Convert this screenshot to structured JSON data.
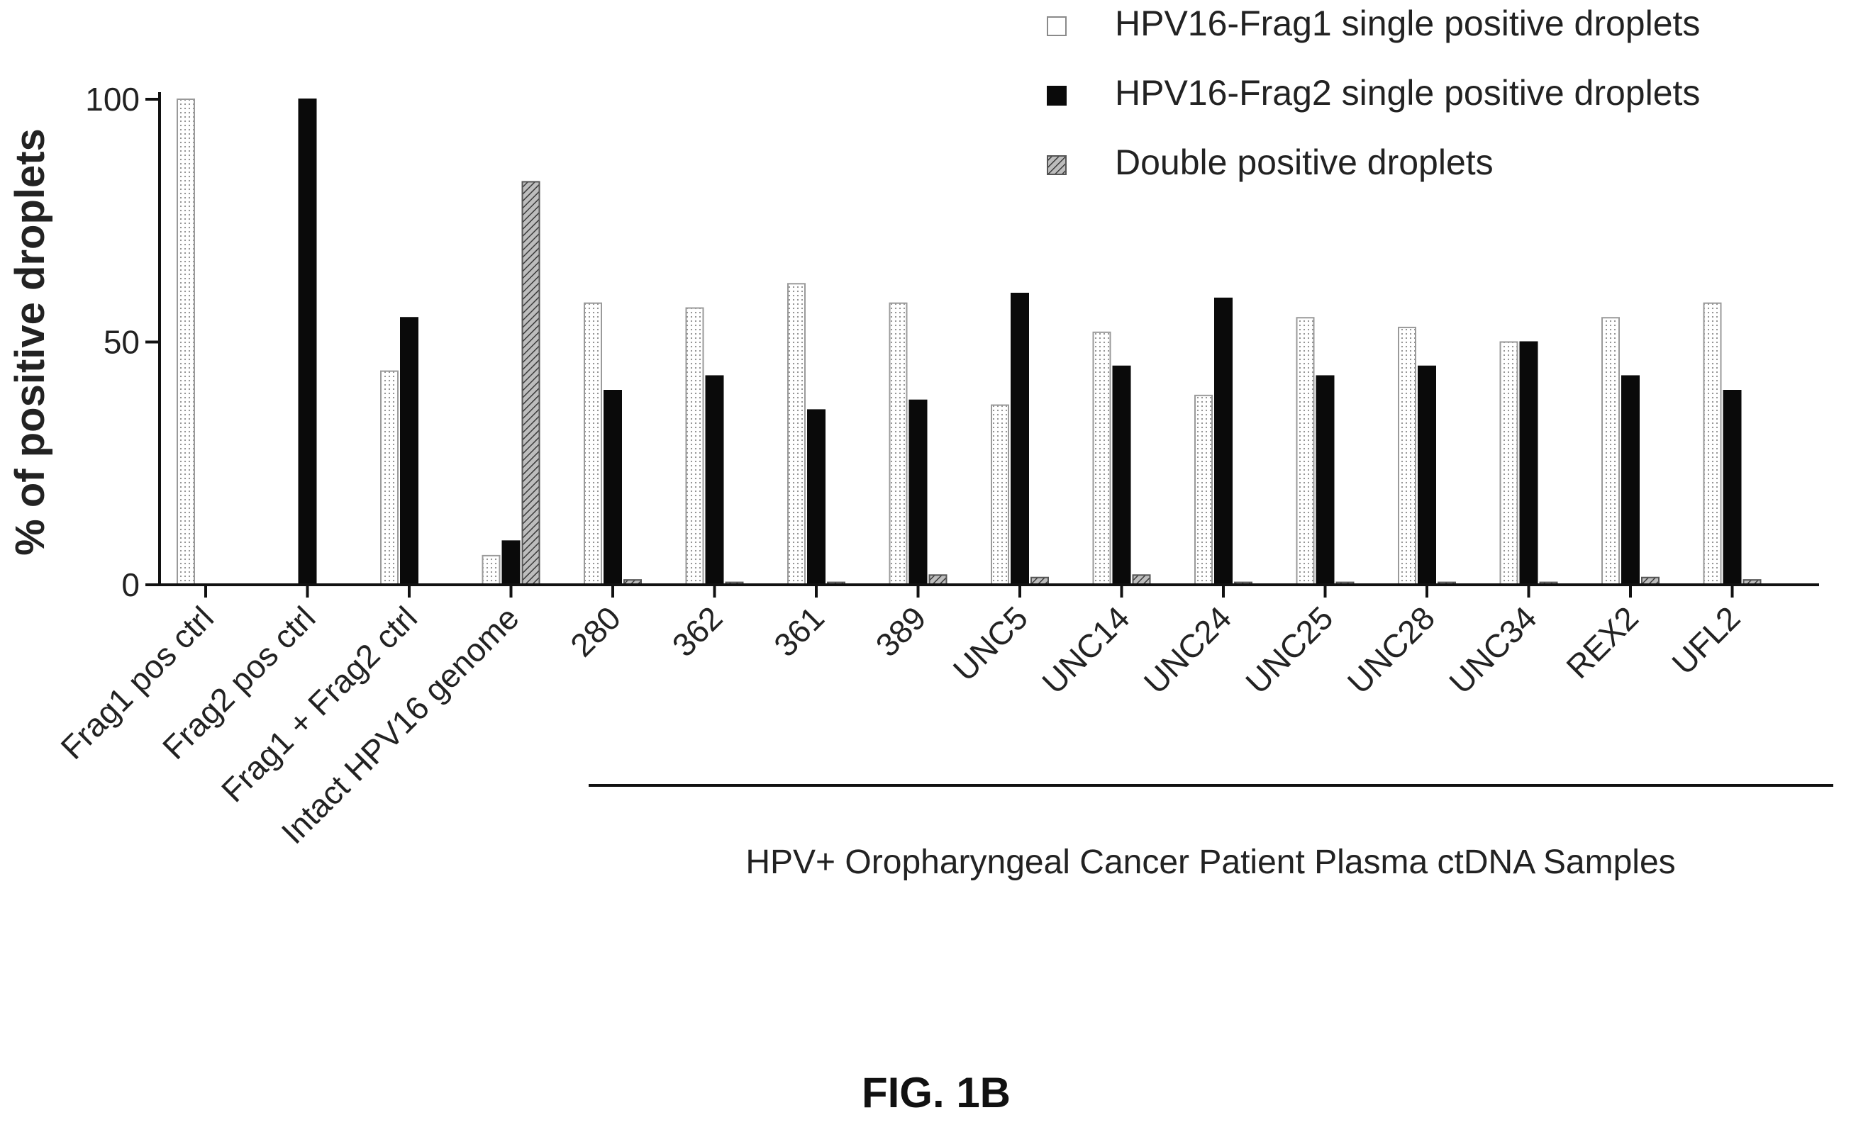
{
  "figure_label": "FIG. 1B",
  "chart_data": {
    "type": "bar",
    "title": "",
    "ylabel": "% of positive droplets",
    "xlabel": "",
    "ylim": [
      0,
      100
    ],
    "yticks": [
      "0",
      "50",
      "100"
    ],
    "grid": false,
    "legend_position": "top-right",
    "categories": [
      "Frag1 pos ctrl",
      "Frag2 pos ctrl",
      "Frag1 + Frag2 ctrl",
      "Intact HPV16 genome",
      "280",
      "362",
      "361",
      "389",
      "UNC5",
      "UNC14",
      "UNC24",
      "UNC25",
      "UNC28",
      "UNC34",
      "REX2",
      "UFL2"
    ],
    "group_label": "HPV+ Oropharyngeal Cancer Patient Plasma ctDNA Samples",
    "series": [
      {
        "name": "HPV16-Frag1 single positive droplets",
        "pattern": "white-dotted",
        "values": [
          100,
          0,
          44,
          6,
          58,
          57,
          62,
          58,
          37,
          52,
          39,
          55,
          53,
          50,
          55,
          58
        ]
      },
      {
        "name": "HPV16-Frag2 single positive droplets",
        "pattern": "solid-black",
        "values": [
          0,
          100,
          55,
          9,
          40,
          43,
          36,
          38,
          60,
          45,
          59,
          43,
          45,
          50,
          43,
          40
        ]
      },
      {
        "name": "Double positive droplets",
        "pattern": "hatched-gray",
        "values": [
          0,
          0,
          0,
          83,
          1,
          0.5,
          0.5,
          2,
          1.5,
          2,
          0.5,
          0.5,
          0.5,
          0.5,
          1.5,
          1
        ]
      }
    ]
  }
}
